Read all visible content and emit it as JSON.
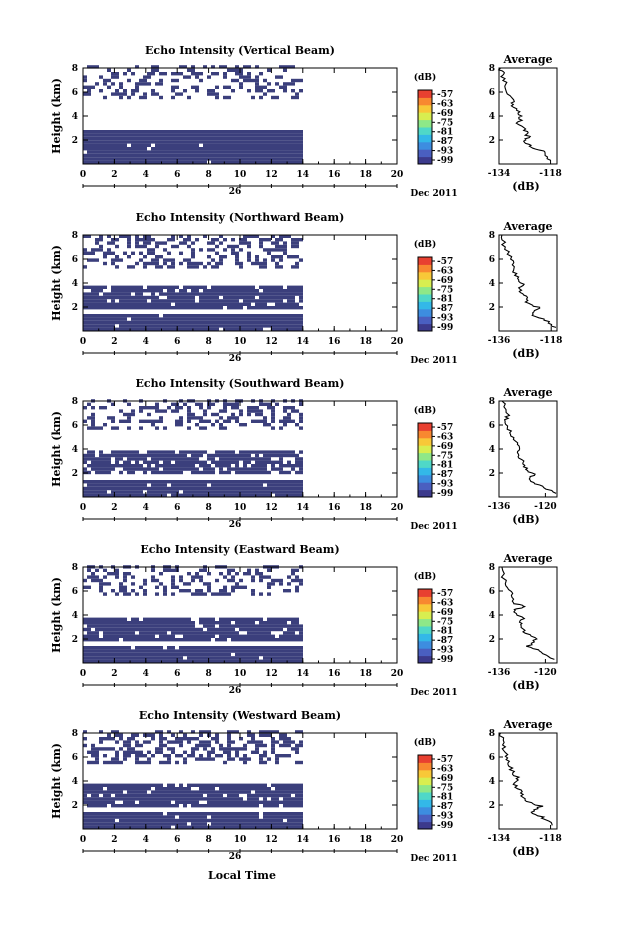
{
  "colors": {
    "echo_cell": "#3b3f7c",
    "colorbar": [
      "#3c3a8c",
      "#4a5fc0",
      "#3d8de0",
      "#33b8e8",
      "#4fd8c8",
      "#8ee888",
      "#d8ee50",
      "#f8c838",
      "#f88830",
      "#e84030"
    ]
  },
  "chart_data": [
    {
      "type": "heatmap",
      "title": "Echo Intensity (Vertical Beam)",
      "ylabel": "Height (km)",
      "xlabel_date": "Dec 2011",
      "xlabel_day": "26",
      "x_ticks": [
        "0",
        "2",
        "4",
        "6",
        "8",
        "10",
        "12",
        "14",
        "16",
        "18",
        "20"
      ],
      "y_ticks": [
        "2",
        "4",
        "6",
        "8"
      ],
      "xlim": [
        0,
        20
      ],
      "ylim": [
        0,
        8
      ],
      "colorbar": {
        "unit": "(dB)",
        "ticks": [
          "-57",
          "-63",
          "-69",
          "-75",
          "-81",
          "-87",
          "-93",
          "-99"
        ]
      },
      "data_extent_hours": [
        0,
        14
      ],
      "layers": [
        {
          "from_km": 0.0,
          "to_km": 2.8,
          "density": 0.98
        },
        {
          "from_km": 5.4,
          "to_km": 8.0,
          "density": 0.35
        }
      ],
      "average": {
        "title": "Average",
        "xlabel": "(dB)",
        "x_ticks": [
          "-134",
          "-118"
        ],
        "y_ticks": [
          "2",
          "4",
          "6",
          "8"
        ],
        "xlim": [
          -134,
          -116
        ],
        "ylim": [
          0,
          8
        ],
        "profile": [
          [
            -118,
            0.3
          ],
          [
            -120,
            1.0
          ],
          [
            -124,
            1.4
          ],
          [
            -126,
            1.8
          ],
          [
            -125,
            2.3
          ],
          [
            -126,
            2.8
          ],
          [
            -128,
            3.4
          ],
          [
            -127,
            4.0
          ],
          [
            -129,
            4.6
          ],
          [
            -130,
            5.2
          ],
          [
            -131,
            6.0
          ],
          [
            -132,
            6.8
          ],
          [
            -133,
            7.6
          ],
          [
            -133.5,
            8.0
          ]
        ]
      }
    },
    {
      "type": "heatmap",
      "title": "Echo Intensity (Northward Beam)",
      "ylabel": "Height (km)",
      "xlabel_date": "Dec 2011",
      "xlabel_day": "26",
      "x_ticks": [
        "0",
        "2",
        "4",
        "6",
        "8",
        "10",
        "12",
        "14",
        "16",
        "18",
        "20"
      ],
      "y_ticks": [
        "2",
        "4",
        "6",
        "8"
      ],
      "xlim": [
        0,
        20
      ],
      "ylim": [
        0,
        8
      ],
      "colorbar": {
        "unit": "(dB)",
        "ticks": [
          "-57",
          "-63",
          "-69",
          "-75",
          "-81",
          "-87",
          "-93",
          "-99"
        ]
      },
      "data_extent_hours": [
        0,
        14
      ],
      "layers": [
        {
          "from_km": 0.0,
          "to_km": 1.4,
          "density": 0.98
        },
        {
          "from_km": 1.8,
          "to_km": 3.6,
          "density": 0.92
        },
        {
          "from_km": 5.2,
          "to_km": 8.0,
          "density": 0.4
        }
      ],
      "average": {
        "title": "Average",
        "xlabel": "(dB)",
        "x_ticks": [
          "-136",
          "-118"
        ],
        "y_ticks": [
          "2",
          "4",
          "6",
          "8"
        ],
        "xlim": [
          -136,
          -116
        ],
        "ylim": [
          0,
          8
        ],
        "profile": [
          [
            -117,
            0.3
          ],
          [
            -120,
            0.9
          ],
          [
            -125,
            1.4
          ],
          [
            -122,
            1.9
          ],
          [
            -126,
            2.3
          ],
          [
            -127,
            2.9
          ],
          [
            -129,
            3.4
          ],
          [
            -128,
            3.9
          ],
          [
            -130,
            4.5
          ],
          [
            -131,
            5.2
          ],
          [
            -132,
            6.0
          ],
          [
            -134,
            7.0
          ],
          [
            -135,
            8.0
          ]
        ]
      }
    },
    {
      "type": "heatmap",
      "title": "Echo Intensity (Southward Beam)",
      "ylabel": "Height (km)",
      "xlabel_date": "Dec 2011",
      "xlabel_day": "26",
      "x_ticks": [
        "0",
        "2",
        "4",
        "6",
        "8",
        "10",
        "12",
        "14",
        "16",
        "18",
        "20"
      ],
      "y_ticks": [
        "2",
        "4",
        "6",
        "8"
      ],
      "xlim": [
        0,
        20
      ],
      "ylim": [
        0,
        8
      ],
      "colorbar": {
        "unit": "(dB)",
        "ticks": [
          "-57",
          "-63",
          "-69",
          "-75",
          "-81",
          "-87",
          "-93",
          "-99"
        ]
      },
      "data_extent_hours": [
        0,
        14
      ],
      "layers": [
        {
          "from_km": 0.0,
          "to_km": 1.2,
          "density": 0.97
        },
        {
          "from_km": 1.9,
          "to_km": 3.6,
          "density": 0.85
        },
        {
          "from_km": 5.6,
          "to_km": 8.0,
          "density": 0.35
        }
      ],
      "average": {
        "title": "Average",
        "xlabel": "(dB)",
        "x_ticks": [
          "-136",
          "-120"
        ],
        "y_ticks": [
          "2",
          "4",
          "6",
          "8"
        ],
        "xlim": [
          -136,
          -116
        ],
        "ylim": [
          0,
          8
        ],
        "profile": [
          [
            -117,
            0.3
          ],
          [
            -121,
            0.9
          ],
          [
            -126,
            1.4
          ],
          [
            -124,
            1.9
          ],
          [
            -127,
            2.4
          ],
          [
            -128,
            3.0
          ],
          [
            -130,
            3.6
          ],
          [
            -129,
            4.1
          ],
          [
            -131,
            4.8
          ],
          [
            -132,
            5.5
          ],
          [
            -134,
            6.2
          ],
          [
            -133,
            6.8
          ],
          [
            -135,
            8.0
          ]
        ]
      }
    },
    {
      "type": "heatmap",
      "title": "Echo Intensity (Eastward Beam)",
      "ylabel": "Height (km)",
      "xlabel_date": "Dec 2011",
      "xlabel_day": "26",
      "x_ticks": [
        "0",
        "2",
        "4",
        "6",
        "8",
        "10",
        "12",
        "14",
        "16",
        "18",
        "20"
      ],
      "y_ticks": [
        "2",
        "4",
        "6",
        "8"
      ],
      "xlim": [
        0,
        20
      ],
      "ylim": [
        0,
        8
      ],
      "colorbar": {
        "unit": "(dB)",
        "ticks": [
          "-57",
          "-63",
          "-69",
          "-75",
          "-81",
          "-87",
          "-93",
          "-99"
        ]
      },
      "data_extent_hours": [
        0,
        14
      ],
      "layers": [
        {
          "from_km": 0.0,
          "to_km": 1.3,
          "density": 0.98
        },
        {
          "from_km": 1.8,
          "to_km": 3.6,
          "density": 0.9
        },
        {
          "from_km": 5.6,
          "to_km": 8.0,
          "density": 0.35
        }
      ],
      "average": {
        "title": "Average",
        "xlabel": "(dB)",
        "x_ticks": [
          "-136",
          "-120"
        ],
        "y_ticks": [
          "2",
          "4",
          "6",
          "8"
        ],
        "xlim": [
          -136,
          -116
        ],
        "ylim": [
          0,
          8
        ],
        "profile": [
          [
            -117,
            0.3
          ],
          [
            -121,
            0.9
          ],
          [
            -126,
            1.4
          ],
          [
            -123,
            2.0
          ],
          [
            -127,
            2.6
          ],
          [
            -129,
            3.2
          ],
          [
            -128,
            3.7
          ],
          [
            -131,
            4.4
          ],
          [
            -127,
            4.7
          ],
          [
            -131,
            5.0
          ],
          [
            -132,
            5.8
          ],
          [
            -134,
            6.6
          ],
          [
            -135,
            8.0
          ]
        ]
      }
    },
    {
      "type": "heatmap",
      "title": "Echo Intensity (Westward Beam)",
      "ylabel": "Height (km)",
      "xlabel_date": "Dec 2011",
      "xlabel_day": "26",
      "x_ticks": [
        "0",
        "2",
        "4",
        "6",
        "8",
        "10",
        "12",
        "14",
        "16",
        "18",
        "20"
      ],
      "y_ticks": [
        "2",
        "4",
        "6",
        "8"
      ],
      "xlim": [
        0,
        20
      ],
      "ylim": [
        0,
        8
      ],
      "colorbar": {
        "unit": "(dB)",
        "ticks": [
          "-57",
          "-63",
          "-69",
          "-75",
          "-81",
          "-87",
          "-93",
          "-99"
        ]
      },
      "data_extent_hours": [
        0,
        14
      ],
      "layers": [
        {
          "from_km": 0.0,
          "to_km": 1.3,
          "density": 0.97
        },
        {
          "from_km": 1.8,
          "to_km": 3.6,
          "density": 0.9
        },
        {
          "from_km": 5.4,
          "to_km": 8.0,
          "density": 0.45
        }
      ],
      "average": {
        "title": "Average",
        "xlabel": "(dB)",
        "x_ticks": [
          "-134",
          "-118"
        ],
        "y_ticks": [
          "2",
          "4",
          "6",
          "8"
        ],
        "xlim": [
          -134,
          -116
        ],
        "ylim": [
          0,
          8
        ],
        "profile": [
          [
            -117,
            0.3
          ],
          [
            -120,
            0.9
          ],
          [
            -124,
            1.4
          ],
          [
            -121,
            1.9
          ],
          [
            -126,
            2.4
          ],
          [
            -127,
            3.0
          ],
          [
            -129,
            3.6
          ],
          [
            -128,
            4.2
          ],
          [
            -130,
            4.8
          ],
          [
            -131,
            5.5
          ],
          [
            -132,
            6.2
          ],
          [
            -133,
            7.0
          ],
          [
            -133.5,
            8.0
          ]
        ]
      }
    }
  ],
  "footer": {
    "xlabel": "Local Time"
  }
}
